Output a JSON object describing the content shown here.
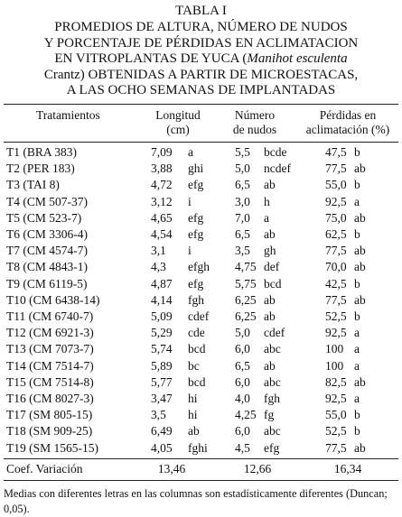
{
  "title": {
    "label": "TABLA I",
    "lines": [
      [
        "PROMEDIOS DE ALTURA, NÚMERO DE NUDOS"
      ],
      [
        "Y PORCENTAJE DE PÉRDIDAS EN ACLIMATACION"
      ],
      [
        "EN VITROPLANTAS DE YUCA (",
        "Manihot esculenta"
      ],
      [
        "Crantz) OBTENIDAS A PARTIR DE MICROESTACAS,"
      ],
      [
        "A LAS OCHO SEMANAS DE IMPLANTADAS"
      ]
    ]
  },
  "table": {
    "headers": [
      [
        "Tratamientos"
      ],
      [
        "Longitud",
        "(cm)"
      ],
      [
        "Número",
        "de nudos"
      ],
      [
        "Pérdidas en",
        "aclimatación (%)"
      ]
    ],
    "rows": [
      [
        "T1 (BRA 383)",
        "7,09",
        "a",
        "5,5",
        "bcde",
        "47,5",
        "b"
      ],
      [
        "T2 (PER 183)",
        "3,88",
        "ghi",
        "5,0",
        "ncdef",
        "77,5",
        "ab"
      ],
      [
        "T3 (TAI 8)",
        "4,72",
        "efg",
        "6,5",
        "ab",
        "55,0",
        "b"
      ],
      [
        "T4 (CM 507-37)",
        "3,12",
        "i",
        "3,0",
        "h",
        "92,5",
        "a"
      ],
      [
        "T5 (CM 523-7)",
        "4,65",
        "efg",
        "7,0",
        "a",
        "75,0",
        "ab"
      ],
      [
        "T6 (CM 3306-4)",
        "4,54",
        "efg",
        "6,5",
        "ab",
        "62,5",
        "b"
      ],
      [
        "T7 (CM 4574-7)",
        "3,1",
        "i",
        "3,5",
        "gh",
        "77,5",
        "ab"
      ],
      [
        "T8 (CM 4843-1)",
        "4,3",
        "efgh",
        "4,75",
        "def",
        "70,0",
        "ab"
      ],
      [
        "T9 (CM 6119-5)",
        "4,87",
        "efg",
        "5,75",
        "bcd",
        "42,5",
        "b"
      ],
      [
        "T10 (CM 6438-14)",
        "4,14",
        "fgh",
        "6,25",
        "ab",
        "77,5",
        "ab"
      ],
      [
        "T11 (CM 6740-7)",
        "5,09",
        "cdef",
        "6,25",
        "ab",
        "52,5",
        "b"
      ],
      [
        "T12 (CM 6921-3)",
        "5,29",
        "cde",
        "5,0",
        "cdef",
        "92,5",
        "a"
      ],
      [
        "T13 (CM 7073-7)",
        "5,74",
        "bcd",
        "6,0",
        "abc",
        "100",
        "a"
      ],
      [
        "T14 (CM 7514-7)",
        "5,89",
        "bc",
        "6,5",
        "ab",
        "100",
        "a"
      ],
      [
        "T15 (CM 7514-8)",
        "5,77",
        "bcd",
        "6,0",
        "abc",
        "82,5",
        "ab"
      ],
      [
        "T16 (CM 8027-3)",
        "3,47",
        "hi",
        "4,0",
        "fgh",
        "92,5",
        "a"
      ],
      [
        "T17 (SM 805-15)",
        "3,5",
        "hi",
        "4,25",
        "fg",
        "55,0",
        "b"
      ],
      [
        "T18 (SM 909-25)",
        "6,49",
        "ab",
        "6,0",
        "abc",
        "52,5",
        "b"
      ],
      [
        "T19 (SM 1565-15)",
        "4,05",
        "fghi",
        "4,5",
        "efg",
        "77,5",
        "ab"
      ]
    ],
    "footer_row": [
      "Coef. Variación",
      "13,46",
      "12,66",
      "16,34"
    ]
  },
  "footnote": "Medias con diferentes letras en las columnas son estadísticamente diferentes (Duncan; 0,05)."
}
